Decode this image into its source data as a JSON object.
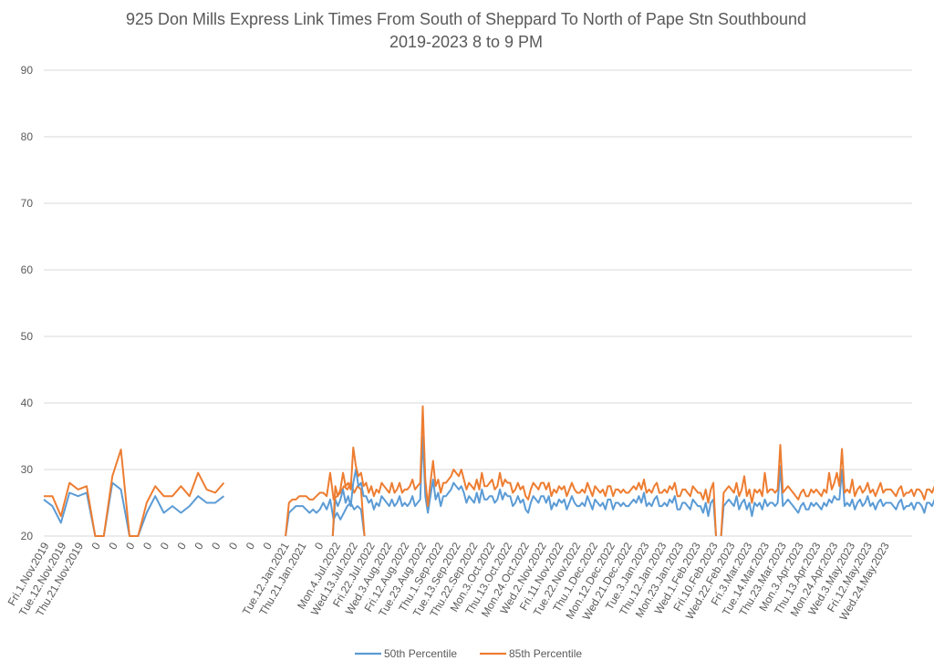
{
  "chart_data": {
    "type": "line",
    "title_line1": "925 Don Mills Express Link Times From South of Sheppard To North of Pape Stn Southbound",
    "title_line2": "2019-2023 8 to 9 PM",
    "ylim": [
      20,
      90
    ],
    "y_ticks": [
      "20",
      "30",
      "40",
      "50",
      "60",
      "70",
      "80",
      "90"
    ],
    "x_tick_labels": [
      "Fri.1.Nov.2019",
      "Tue.12.Nov.2019",
      "Thu.21.Nov.2019",
      "0",
      "0",
      "0",
      "0",
      "0",
      "0",
      "0",
      "0",
      "0",
      "0",
      "0",
      "Tue.12.Jan.2021",
      "Thu.21.Jan.2021",
      "0",
      "Mon.4.Jul.2022",
      "Wed.13.Jul.2022",
      "Fri.22.Jul.2022",
      "Wed.3.Aug.2022",
      "Fri.12.Aug.2022",
      "Tue.23.Aug.2022",
      "Thu.1.Sep.2022",
      "Tue.13.Sep.2022",
      "Thu.22.Sep.2022",
      "Mon.3.Oct.2022",
      "Thu.13.Oct.2022",
      "Mon.24.Oct.2022",
      "Wed.2.Nov.2022",
      "Fri.11.Nov.2022",
      "Tue.22.Nov.2022",
      "Thu.1.Dec.2022",
      "Mon.12.Dec.2022",
      "Wed.21.Dec.2022",
      "Tue.3.Jan.2023",
      "Thu.12.Jan.2023",
      "Mon.23.Jan.2023",
      "Wed.1.Feb.2023",
      "Fri.10.Feb.2023",
      "Wed.22.Feb.2023",
      "Fri.3.Mar.2023",
      "Tue.14.Mar.2023",
      "Thu.23.Mar.2023",
      "Mon.3.Apr.2023",
      "Thu.13.Apr.2023",
      "Mon.24.Apr.2023",
      "Wed.3.May.2023",
      "Fri.12.May.2023",
      "Wed.24.May.2023"
    ],
    "segments": [
      {
        "x_start": 0,
        "x_step": 0.5,
        "p50": [
          25.5,
          24.5,
          22,
          26.5,
          26,
          26.5,
          20,
          20,
          28,
          27,
          20,
          20,
          23.5,
          26,
          23.5,
          24.5,
          23.5,
          24.5,
          26,
          25,
          25,
          26
        ],
        "p85": [
          26,
          26,
          23,
          28,
          27,
          27.5,
          20,
          20,
          29,
          33,
          20,
          20,
          25,
          27.5,
          26,
          26,
          27.5,
          26,
          29.5,
          27,
          26.5,
          28
        ]
      },
      {
        "x_start": 14.1,
        "x_step": 0.2,
        "p50": [
          20,
          23.5,
          24,
          24.5,
          24.5,
          24.5,
          24,
          23.5,
          24,
          23.5,
          24,
          25,
          24,
          25.5,
          22.5,
          23.5,
          22.5,
          23.5,
          24.5,
          25,
          24,
          24.5,
          24,
          20
        ],
        "p85": [
          20,
          25,
          25.5,
          25.5,
          26,
          26,
          26,
          25.5,
          25.5,
          26,
          26.5,
          26.5,
          26,
          29.5,
          25.5,
          26,
          26.5,
          27.5,
          27,
          28,
          26.5,
          27.5,
          27,
          20
        ]
      },
      {
        "x_start": 16.85,
        "x_step": 0.15,
        "p50": [
          20,
          25.5,
          24.5,
          25.5,
          27,
          25,
          26,
          24.5,
          28,
          30,
          27.5,
          28,
          26,
          26,
          25,
          25.5,
          24,
          25,
          24.5,
          26,
          25.5,
          25,
          24.5,
          25.5,
          24.5,
          25,
          26,
          24.5,
          25,
          24.5,
          25,
          26,
          24.5,
          25,
          25.5,
          35,
          26,
          23.5,
          26,
          28.5,
          25.5,
          26.5,
          24.5,
          26,
          26,
          26.5,
          27,
          28,
          27.5,
          27,
          27.5,
          26.5,
          25,
          26,
          25.5,
          25,
          26.5,
          25,
          27,
          25.5,
          25.5,
          26,
          26,
          25,
          25.5,
          27,
          25.5,
          26.5,
          26,
          26,
          24.5,
          25,
          26,
          25,
          25.5,
          24,
          23.5,
          25,
          26,
          25.5,
          25,
          26,
          26,
          25,
          26,
          24,
          25,
          24.5,
          25.5,
          25,
          25.5,
          24,
          25,
          26,
          25,
          24.5,
          24.5,
          25,
          24.5,
          26,
          25,
          24,
          25.5,
          25,
          24.5,
          25,
          24,
          25.5,
          25.5,
          24,
          25,
          25,
          24.5,
          25,
          24.5,
          24.5,
          25,
          25.5,
          25,
          26,
          25,
          26.5,
          24.5,
          25,
          24.5,
          25.5,
          26,
          24.5,
          24.5,
          25,
          24.5,
          25.5,
          25,
          26,
          24,
          24,
          25,
          25,
          24.5,
          24,
          25.5,
          25,
          24.5,
          24.5,
          23.5,
          25,
          23,
          25,
          25.5,
          20
        ],
        "p85": [
          20,
          27.5,
          26,
          27,
          29.5,
          27.5,
          28,
          27,
          33.3,
          30.5,
          29,
          29.5,
          27.5,
          28,
          26.5,
          27.5,
          26,
          27,
          26.5,
          28,
          27.5,
          27,
          26.5,
          28,
          26.5,
          27,
          28,
          26.5,
          27,
          27,
          27.5,
          28.5,
          27,
          27.5,
          28,
          39.5,
          28.5,
          24.5,
          28,
          31.3,
          27.5,
          28.5,
          26.5,
          28,
          28,
          28.5,
          29,
          30,
          29.5,
          29,
          30,
          28.5,
          27,
          28,
          27.5,
          27,
          28.5,
          27,
          29.5,
          27.5,
          27.5,
          28,
          28.5,
          27,
          27.5,
          29.5,
          27.5,
          28.5,
          28,
          28,
          26.5,
          27,
          28,
          27,
          27.5,
          26,
          25.5,
          27,
          28,
          27.5,
          27,
          28,
          28,
          27,
          28,
          26,
          27,
          26.5,
          27.5,
          27,
          27.5,
          26,
          27,
          28,
          27,
          26.5,
          26.5,
          27,
          26.5,
          28,
          27,
          26,
          27.5,
          27,
          26.5,
          27,
          26,
          27.5,
          27.5,
          26,
          27,
          27,
          26.5,
          27,
          26.5,
          26.5,
          27,
          27.5,
          27,
          28,
          27,
          28.5,
          26.5,
          27,
          26.5,
          27.5,
          28,
          26.5,
          26.5,
          27,
          26.5,
          27.5,
          27,
          28,
          26,
          26,
          27,
          27,
          26.5,
          26,
          27.5,
          27,
          26.5,
          26.5,
          25.5,
          27,
          25,
          27,
          28,
          20
        ]
      },
      {
        "x_start": 39.5,
        "x_step": 0.15,
        "p50": [
          20,
          24.5,
          25,
          25.5,
          25,
          24.5,
          26,
          24,
          25,
          25.5,
          24,
          25,
          23,
          25,
          24.5,
          25,
          24,
          25.5,
          24.5,
          25,
          25,
          24.5,
          25,
          30.5,
          24.5,
          25,
          25.5,
          25,
          24.5,
          24,
          23.5,
          24.5,
          25,
          24,
          24,
          25,
          24.5,
          25,
          24.5,
          24,
          25,
          24.5,
          25.5,
          25,
          26,
          25.5,
          25.5,
          30,
          24.5,
          25,
          24.5,
          25.5,
          24,
          25,
          25.5,
          24.5,
          25,
          26,
          24.5,
          25,
          24,
          25,
          25.5,
          24.5,
          25,
          25,
          25,
          24.5,
          24,
          25,
          25.5,
          24,
          24.5,
          24.5,
          25,
          24,
          25,
          25,
          24.5,
          23.5,
          25,
          25,
          24.5,
          25.5,
          26,
          30.5,
          24,
          24.5,
          25,
          24,
          25.5,
          23,
          24.5,
          26,
          24.5,
          25,
          21,
          24.5,
          24.5,
          25,
          25,
          25.5,
          26,
          26.5,
          26,
          25.5,
          26.5,
          26.5,
          26,
          26.5,
          25,
          26,
          24.5,
          26.5,
          25.5,
          27,
          25.5,
          25,
          25.5,
          24.5,
          25,
          25.5,
          25.5,
          26,
          26.5,
          27,
          26.5
        ],
        "p85": [
          20,
          26.5,
          27,
          27.5,
          27,
          26.5,
          28,
          26,
          27,
          29,
          26,
          27,
          25,
          27,
          26.5,
          27,
          26,
          29.5,
          26.5,
          27,
          27,
          26.5,
          27,
          33.7,
          26.5,
          27,
          27.5,
          27,
          26.5,
          26,
          25.5,
          26.5,
          27,
          26,
          26,
          27,
          26.5,
          27,
          26.5,
          26,
          27,
          26.5,
          29.5,
          27,
          28,
          29.5,
          27.5,
          33.1,
          26.5,
          27,
          26.5,
          28.5,
          26,
          27,
          27.5,
          26.5,
          27,
          28,
          26.5,
          27,
          26,
          27,
          28,
          26.5,
          27,
          27,
          27,
          26.5,
          26,
          27,
          27.5,
          26,
          26.5,
          26.5,
          27,
          26,
          27,
          27,
          26.5,
          25.5,
          27,
          27,
          26.5,
          27.5,
          28,
          34.3,
          26,
          26.5,
          27,
          26,
          28,
          25,
          26.5,
          28,
          26.5,
          27,
          24,
          26.5,
          26.5,
          27,
          27,
          27.5,
          28,
          28.5,
          28,
          27.5,
          29,
          28.5,
          28,
          28.5,
          27,
          28,
          26.5,
          28.5,
          27.5,
          29,
          27.5,
          27,
          27.5,
          26.5,
          27,
          27.5,
          27.5,
          28,
          28.5,
          29,
          29.2
        ]
      }
    ],
    "series": [
      {
        "name": "50th Percentile",
        "color": "#5b9bd5"
      },
      {
        "name": "85th Percentile",
        "color": "#ed7d31"
      }
    ],
    "grid": true,
    "legend_position": "bottom"
  }
}
